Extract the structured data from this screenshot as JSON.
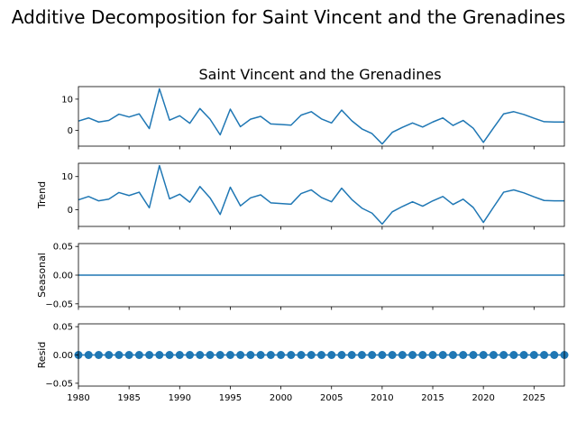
{
  "chart_data": {
    "type": "line",
    "title": "Additive Decomposition for Saint Vincent and the Grenadines",
    "subtitle": "Saint Vincent and the Grenadines",
    "x": [
      1980,
      1981,
      1982,
      1983,
      1984,
      1985,
      1986,
      1987,
      1988,
      1989,
      1990,
      1991,
      1992,
      1993,
      1994,
      1995,
      1996,
      1997,
      1998,
      1999,
      2000,
      2001,
      2002,
      2003,
      2004,
      2005,
      2006,
      2007,
      2008,
      2009,
      2010,
      2011,
      2012,
      2013,
      2014,
      2015,
      2016,
      2017,
      2018,
      2019,
      2020,
      2021,
      2022,
      2023,
      2024,
      2025,
      2026,
      2027,
      2028
    ],
    "xlim": [
      1980,
      2028
    ],
    "xticks": [
      1980,
      1985,
      1990,
      1995,
      2000,
      2005,
      2010,
      2015,
      2020,
      2025
    ],
    "line_color": "#1f77b4",
    "panels": [
      {
        "ylabel": "",
        "ylim": [
          -5,
          14
        ],
        "yticks": [
          0,
          10
        ],
        "marker": false,
        "values": [
          3.0,
          4.0,
          2.7,
          3.2,
          5.2,
          4.3,
          5.3,
          0.6,
          13.3,
          3.3,
          4.7,
          2.3,
          7.0,
          3.6,
          -1.4,
          6.8,
          1.2,
          3.6,
          4.5,
          2.1,
          1.9,
          1.7,
          4.9,
          6.0,
          3.7,
          2.4,
          6.5,
          3.1,
          0.5,
          -1.0,
          -4.3,
          -0.6,
          1.0,
          2.4,
          1.1,
          2.7,
          4.0,
          1.6,
          3.2,
          0.7,
          -3.8,
          0.8,
          5.3,
          6.0,
          5.1,
          3.9,
          2.8,
          2.7,
          2.7
        ]
      },
      {
        "ylabel": "Trend",
        "ylim": [
          -5,
          14
        ],
        "yticks": [
          0,
          10
        ],
        "marker": false,
        "values": [
          3.0,
          4.0,
          2.7,
          3.2,
          5.2,
          4.3,
          5.3,
          0.6,
          13.3,
          3.3,
          4.7,
          2.3,
          7.0,
          3.6,
          -1.4,
          6.8,
          1.2,
          3.6,
          4.5,
          2.1,
          1.9,
          1.7,
          4.9,
          6.0,
          3.7,
          2.4,
          6.5,
          3.1,
          0.5,
          -1.0,
          -4.3,
          -0.6,
          1.0,
          2.4,
          1.1,
          2.7,
          4.0,
          1.6,
          3.2,
          0.7,
          -3.8,
          0.8,
          5.3,
          6.0,
          5.1,
          3.9,
          2.8,
          2.7,
          2.7
        ]
      },
      {
        "ylabel": "Seasonal",
        "ylim": [
          -0.055,
          0.055
        ],
        "yticks": [
          -0.05,
          0.0,
          0.05
        ],
        "yticklabels": [
          "−0.05",
          "0.00",
          "0.05"
        ],
        "marker": false,
        "values": [
          0,
          0,
          0,
          0,
          0,
          0,
          0,
          0,
          0,
          0,
          0,
          0,
          0,
          0,
          0,
          0,
          0,
          0,
          0,
          0,
          0,
          0,
          0,
          0,
          0,
          0,
          0,
          0,
          0,
          0,
          0,
          0,
          0,
          0,
          0,
          0,
          0,
          0,
          0,
          0,
          0,
          0,
          0,
          0,
          0,
          0,
          0,
          0,
          0
        ]
      },
      {
        "ylabel": "Resid",
        "ylim": [
          -0.055,
          0.055
        ],
        "yticks": [
          -0.05,
          0.0,
          0.05
        ],
        "yticklabels": [
          "−0.05",
          "0.00",
          "0.05"
        ],
        "marker": true,
        "values": [
          0,
          0,
          0,
          0,
          0,
          0,
          0,
          0,
          0,
          0,
          0,
          0,
          0,
          0,
          0,
          0,
          0,
          0,
          0,
          0,
          0,
          0,
          0,
          0,
          0,
          0,
          0,
          0,
          0,
          0,
          0,
          0,
          0,
          0,
          0,
          0,
          0,
          0,
          0,
          0,
          0,
          0,
          0,
          0,
          0,
          0,
          0,
          0,
          0
        ]
      }
    ]
  }
}
